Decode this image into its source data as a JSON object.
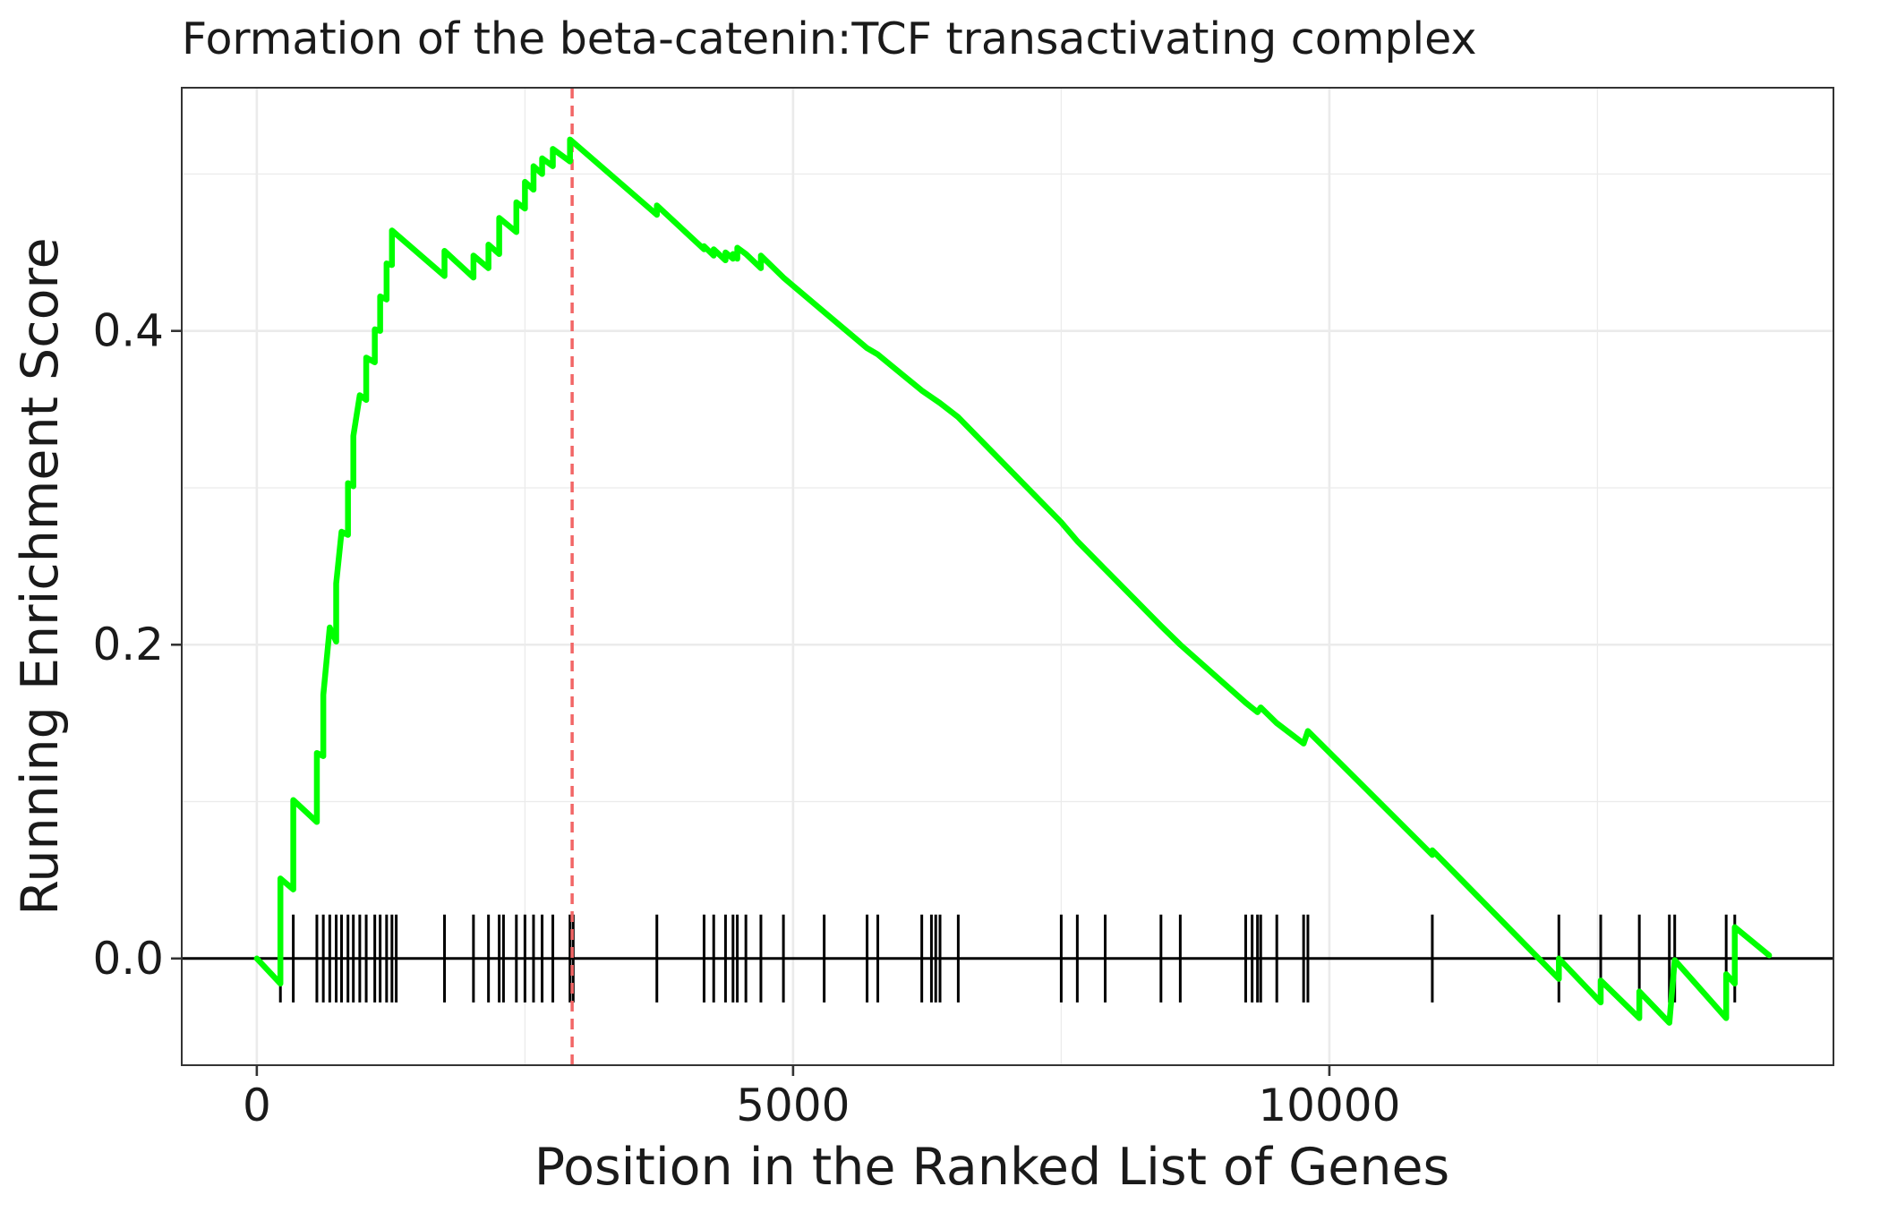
{
  "chart_data": {
    "type": "line",
    "title": "Formation of the beta-catenin:TCF transactivating complex",
    "xlabel": "Position in the Ranked List of Genes",
    "ylabel": "Running Enrichment Score",
    "xlim": [
      -700,
      14700
    ],
    "ylim": [
      -0.068,
      0.555
    ],
    "x_ticks": [
      0,
      5000,
      10000
    ],
    "x_tick_labels": [
      "0",
      "5000",
      "10000"
    ],
    "y_ticks": [
      0.0,
      0.2,
      0.4
    ],
    "y_tick_labels": [
      "0.0",
      "0.2",
      "0.4"
    ],
    "grid": true,
    "legend": "none",
    "colors": {
      "line": "#00ff00",
      "peak_marker": "#f26666",
      "hits": "#000000",
      "zero_line": "#000000",
      "grid": "#ebebeb",
      "panel_border": "#333333"
    },
    "peak_position": 2940,
    "hit_positions": [
      220,
      340,
      560,
      620,
      680,
      740,
      790,
      850,
      900,
      960,
      1020,
      1100,
      1150,
      1210,
      1260,
      1300,
      1750,
      2020,
      2160,
      2260,
      2300,
      2420,
      2500,
      2580,
      2660,
      2760,
      2920,
      2950,
      3730,
      4170,
      4260,
      4370,
      4440,
      4480,
      4560,
      4700,
      4910,
      5290,
      5690,
      5790,
      6200,
      6290,
      6330,
      6370,
      6540,
      7500,
      7650,
      7910,
      8430,
      8610,
      9220,
      9280,
      9330,
      9360,
      9510,
      9760,
      9800,
      10960,
      12140,
      12530,
      12890,
      13170,
      13220,
      13700,
      13780
    ],
    "series": [
      {
        "values": [
          [
            0,
            0.0
          ],
          [
            220,
            -0.016
          ],
          [
            220,
            0.051
          ],
          [
            340,
            0.044
          ],
          [
            340,
            0.101
          ],
          [
            560,
            0.087
          ],
          [
            560,
            0.131
          ],
          [
            620,
            0.129
          ],
          [
            620,
            0.168
          ],
          [
            680,
            0.211
          ],
          [
            740,
            0.202
          ],
          [
            740,
            0.239
          ],
          [
            790,
            0.272
          ],
          [
            850,
            0.27
          ],
          [
            850,
            0.303
          ],
          [
            900,
            0.301
          ],
          [
            900,
            0.333
          ],
          [
            960,
            0.359
          ],
          [
            1020,
            0.356
          ],
          [
            1020,
            0.383
          ],
          [
            1100,
            0.38
          ],
          [
            1100,
            0.401
          ],
          [
            1150,
            0.4
          ],
          [
            1150,
            0.422
          ],
          [
            1210,
            0.42
          ],
          [
            1210,
            0.443
          ],
          [
            1260,
            0.442
          ],
          [
            1260,
            0.464
          ],
          [
            1750,
            0.435
          ],
          [
            1750,
            0.451
          ],
          [
            2020,
            0.434
          ],
          [
            2020,
            0.448
          ],
          [
            2160,
            0.44
          ],
          [
            2160,
            0.455
          ],
          [
            2260,
            0.449
          ],
          [
            2260,
            0.472
          ],
          [
            2420,
            0.463
          ],
          [
            2420,
            0.482
          ],
          [
            2500,
            0.478
          ],
          [
            2500,
            0.495
          ],
          [
            2580,
            0.49
          ],
          [
            2580,
            0.505
          ],
          [
            2660,
            0.5
          ],
          [
            2660,
            0.51
          ],
          [
            2760,
            0.505
          ],
          [
            2760,
            0.516
          ],
          [
            2920,
            0.508
          ],
          [
            2920,
            0.522
          ],
          [
            3730,
            0.474
          ],
          [
            3730,
            0.48
          ],
          [
            4170,
            0.452
          ],
          [
            4170,
            0.454
          ],
          [
            4260,
            0.448
          ],
          [
            4260,
            0.452
          ],
          [
            4370,
            0.445
          ],
          [
            4370,
            0.45
          ],
          [
            4440,
            0.446
          ],
          [
            4440,
            0.449
          ],
          [
            4480,
            0.446
          ],
          [
            4480,
            0.453
          ],
          [
            4560,
            0.449
          ],
          [
            4700,
            0.44
          ],
          [
            4700,
            0.448
          ],
          [
            4910,
            0.434
          ],
          [
            5290,
            0.412
          ],
          [
            5690,
            0.389
          ],
          [
            5790,
            0.385
          ],
          [
            6200,
            0.362
          ],
          [
            6370,
            0.354
          ],
          [
            6540,
            0.345
          ],
          [
            7500,
            0.278
          ],
          [
            7650,
            0.266
          ],
          [
            7910,
            0.248
          ],
          [
            8430,
            0.212
          ],
          [
            8610,
            0.2
          ],
          [
            9220,
            0.163
          ],
          [
            9330,
            0.157
          ],
          [
            9360,
            0.16
          ],
          [
            9510,
            0.15
          ],
          [
            9760,
            0.137
          ],
          [
            9800,
            0.145
          ],
          [
            10960,
            0.066
          ],
          [
            10960,
            0.069
          ],
          [
            12140,
            -0.013
          ],
          [
            12140,
            0.0
          ],
          [
            12530,
            -0.028
          ],
          [
            12530,
            -0.014
          ],
          [
            12890,
            -0.038
          ],
          [
            12890,
            -0.021
          ],
          [
            13170,
            -0.041
          ],
          [
            13220,
            -0.001
          ],
          [
            13700,
            -0.038
          ],
          [
            13700,
            -0.01
          ],
          [
            13780,
            -0.016
          ],
          [
            13780,
            0.02
          ],
          [
            14100,
            0.002
          ]
        ]
      }
    ]
  }
}
